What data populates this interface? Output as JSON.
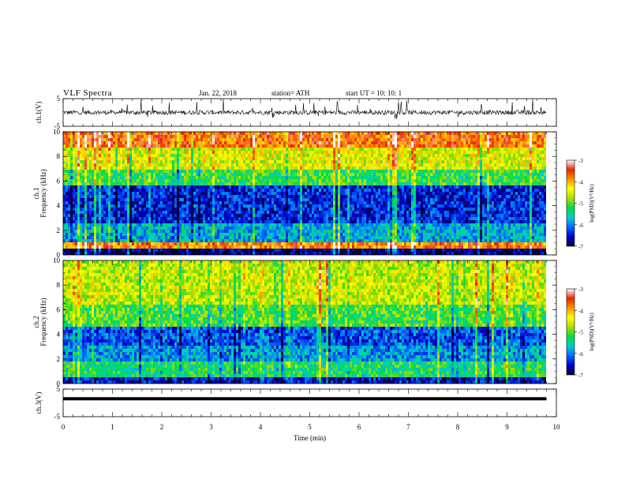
{
  "header": {
    "title": "VLF  Spectra",
    "date": "Jan. 22, 2018",
    "station": "station= ATH",
    "start": "start  UT  =    10: 10: 1"
  },
  "chart_data": [
    {
      "type": "line",
      "panel": "ch1-waveform",
      "ylabel": "ch.1(V)",
      "ylim": [
        -5,
        5
      ],
      "yticks": [
        "5",
        "-5"
      ],
      "x_extent_min": [
        0,
        9.8
      ],
      "description_of_trace": "noisy waveform centered near 0 V with spikes reaching about 4 V"
    },
    {
      "type": "heatmap",
      "panel": "ch1-spectrogram",
      "ylabel": "Frequency  (kHz)",
      "channel_label": "ch.1",
      "ylim": [
        0,
        10
      ],
      "yticks": [
        "0",
        "2",
        "4",
        "6",
        "8",
        "10"
      ],
      "x_extent_min": [
        0,
        9.8
      ],
      "bands_logPSD": [
        {
          "fmin": 0,
          "fmax": 0.6,
          "level": -6.8
        },
        {
          "fmin": 0.6,
          "fmax": 1.0,
          "level": -3.8
        },
        {
          "fmin": 1.0,
          "fmax": 2.6,
          "level": -5.8
        },
        {
          "fmin": 2.6,
          "fmax": 5.6,
          "level": -6.4
        },
        {
          "fmin": 5.6,
          "fmax": 7.0,
          "level": -5.2
        },
        {
          "fmin": 7.0,
          "fmax": 8.6,
          "level": -4.5
        },
        {
          "fmin": 8.6,
          "fmax": 10,
          "level": -3.7
        }
      ]
    },
    {
      "type": "heatmap",
      "panel": "ch2-spectrogram",
      "ylabel": "Frequency  (kHz)",
      "channel_label": "ch.2",
      "ylim": [
        0,
        10
      ],
      "yticks": [
        "0",
        "2",
        "4",
        "6",
        "8",
        "10"
      ],
      "x_extent_min": [
        0,
        9.8
      ],
      "bands_logPSD": [
        {
          "fmin": 0,
          "fmax": 0.5,
          "level": -6.5
        },
        {
          "fmin": 0.5,
          "fmax": 1.8,
          "level": -5.3
        },
        {
          "fmin": 1.8,
          "fmax": 3.0,
          "level": -5.9
        },
        {
          "fmin": 3.0,
          "fmax": 4.6,
          "level": -6.2
        },
        {
          "fmin": 4.6,
          "fmax": 6.5,
          "level": -5.1
        },
        {
          "fmin": 6.5,
          "fmax": 10,
          "level": -4.6
        }
      ]
    },
    {
      "type": "line",
      "panel": "ch3-waveform",
      "ylabel": "ch.3(V)",
      "ylim": [
        -5,
        5
      ],
      "yticks": [
        "5",
        "-5"
      ],
      "x_extent_min": [
        0,
        9.8
      ],
      "constant_value": 1.5
    }
  ],
  "x_axis": {
    "xlabel": "Time  (min)",
    "xlim": [
      0,
      10
    ],
    "ticks": [
      "0",
      "1",
      "2",
      "3",
      "4",
      "5",
      "6",
      "7",
      "8",
      "9",
      "10"
    ]
  },
  "colorbar": {
    "label": "log(PSD)(V²/Hz)",
    "range": [
      -7,
      -3
    ],
    "ticks": [
      "-3",
      "-4",
      "-5",
      "-6",
      "-7"
    ],
    "colors": [
      "#000033",
      "#0000cc",
      "#0066ff",
      "#00cccc",
      "#00dd44",
      "#aadd00",
      "#ffff00",
      "#ff9900",
      "#ee2200",
      "#ffffff"
    ]
  }
}
